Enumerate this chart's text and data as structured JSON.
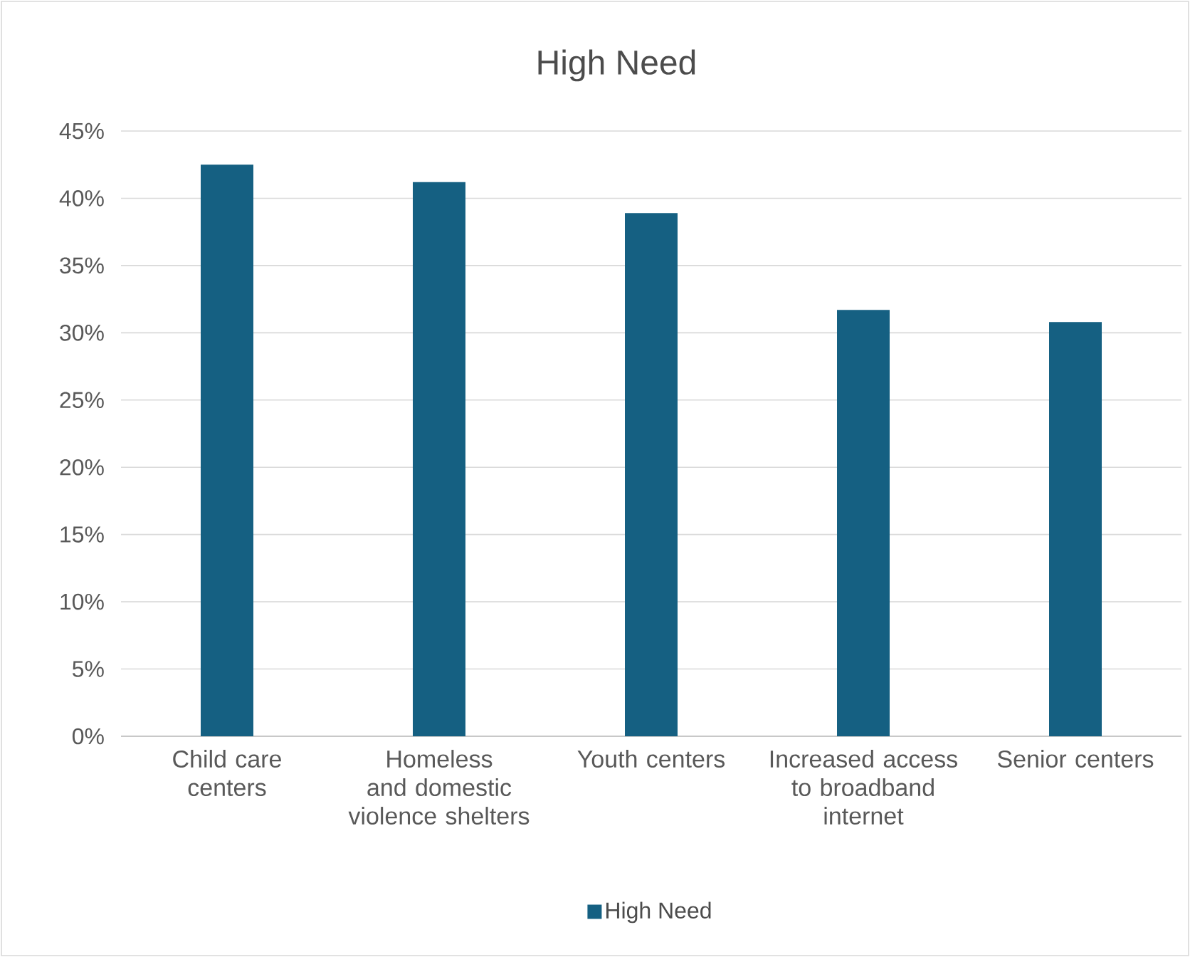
{
  "chart_data": {
    "type": "bar",
    "title": "High Need",
    "categories": [
      "Child care centers",
      "Homeless and domestic violence shelters",
      "Youth centers",
      "Increased access to broadband internet",
      "Senior centers"
    ],
    "series": [
      {
        "name": "High Need",
        "color": "#156082",
        "values": [
          42.5,
          41.2,
          38.9,
          31.7,
          30.8
        ]
      }
    ],
    "ylim": [
      0,
      45
    ],
    "yticks": [
      {
        "value": 0,
        "label": "0%"
      },
      {
        "value": 5,
        "label": "5%"
      },
      {
        "value": 10,
        "label": "10%"
      },
      {
        "value": 15,
        "label": "15%"
      },
      {
        "value": 20,
        "label": "20%"
      },
      {
        "value": 25,
        "label": "25%"
      },
      {
        "value": 30,
        "label": "30%"
      },
      {
        "value": 35,
        "label": "35%"
      },
      {
        "value": 40,
        "label": "40%"
      },
      {
        "value": 45,
        "label": "45%"
      }
    ],
    "grid": "y",
    "legend": "bottom"
  }
}
